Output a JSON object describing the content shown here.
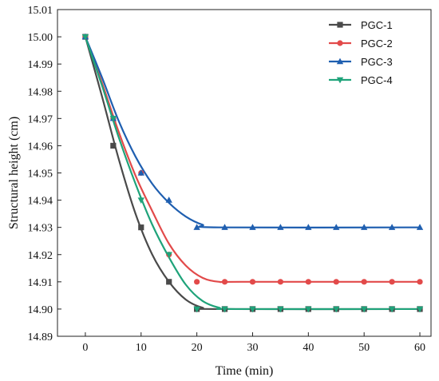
{
  "chart_data": {
    "type": "line",
    "xlabel": "Time (min)",
    "ylabel": "Structural height (cm)",
    "xlim": [
      -5,
      62
    ],
    "ylim": [
      14.89,
      15.01
    ],
    "xticks": [
      "0",
      "10",
      "20",
      "30",
      "40",
      "50",
      "60"
    ],
    "yticks": [
      "14.89",
      "14.90",
      "14.91",
      "14.92",
      "14.93",
      "14.94",
      "14.95",
      "14.96",
      "14.97",
      "14.98",
      "14.99",
      "15.00",
      "15.01"
    ],
    "x": [
      0,
      5,
      10,
      15,
      20,
      25,
      30,
      35,
      40,
      45,
      50,
      55,
      60
    ],
    "legend_position": "top-right",
    "grid": false,
    "series": [
      {
        "name": "PGC-1",
        "color": "#4a4a4a",
        "marker": "square",
        "values": [
          15.0,
          14.96,
          14.93,
          14.91,
          14.9,
          14.9,
          14.9,
          14.9,
          14.9,
          14.9,
          14.9,
          14.9,
          14.9
        ],
        "curve": [
          [
            0,
            15.0
          ],
          [
            3,
            14.978
          ],
          [
            6,
            14.955
          ],
          [
            9,
            14.935
          ],
          [
            12,
            14.92
          ],
          [
            15,
            14.91
          ],
          [
            18,
            14.9035
          ],
          [
            21,
            14.9005
          ],
          [
            24,
            14.9
          ],
          [
            60,
            14.9
          ]
        ]
      },
      {
        "name": "PGC-2",
        "color": "#e24a4a",
        "marker": "circle",
        "values": [
          15.0,
          14.97,
          14.95,
          14.92,
          14.91,
          14.91,
          14.91,
          14.91,
          14.91,
          14.91,
          14.91,
          14.91,
          14.91
        ],
        "curve": [
          [
            0,
            15.0
          ],
          [
            3,
            14.983
          ],
          [
            6,
            14.965
          ],
          [
            9,
            14.949
          ],
          [
            12,
            14.936
          ],
          [
            15,
            14.924
          ],
          [
            18,
            14.916
          ],
          [
            21,
            14.9115
          ],
          [
            24,
            14.91
          ],
          [
            28,
            14.91
          ],
          [
            60,
            14.91
          ]
        ]
      },
      {
        "name": "PGC-3",
        "color": "#1f5fb0",
        "marker": "triangle-up",
        "values": [
          15.0,
          14.97,
          14.95,
          14.94,
          14.93,
          14.93,
          14.93,
          14.93,
          14.93,
          14.93,
          14.93,
          14.93,
          14.93
        ],
        "curve": [
          [
            0,
            15.0
          ],
          [
            3,
            14.985
          ],
          [
            6,
            14.969
          ],
          [
            9,
            14.956
          ],
          [
            12,
            14.946
          ],
          [
            15,
            14.939
          ],
          [
            18,
            14.934
          ],
          [
            21,
            14.931
          ],
          [
            24,
            14.93
          ],
          [
            60,
            14.93
          ]
        ]
      },
      {
        "name": "PGC-4",
        "color": "#1fa37a",
        "marker": "triangle-down",
        "values": [
          15.0,
          14.97,
          14.94,
          14.92,
          14.9,
          14.9,
          14.9,
          14.9,
          14.9,
          14.9,
          14.9,
          14.9,
          14.9
        ],
        "curve": [
          [
            0,
            15.0
          ],
          [
            3,
            14.982
          ],
          [
            6,
            14.963
          ],
          [
            9,
            14.946
          ],
          [
            12,
            14.931
          ],
          [
            15,
            14.919
          ],
          [
            18,
            14.909
          ],
          [
            21,
            14.903
          ],
          [
            24,
            14.9005
          ],
          [
            27,
            14.9
          ],
          [
            60,
            14.9
          ]
        ]
      }
    ]
  }
}
